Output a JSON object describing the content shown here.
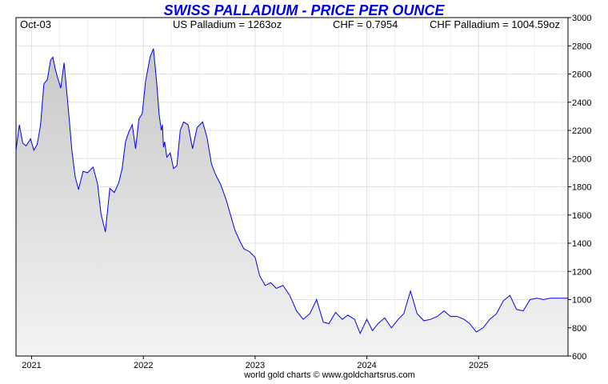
{
  "chart_data": {
    "type": "area",
    "title": "SWISS PALLADIUM - PRICE PER OUNCE",
    "header": {
      "date": "Oct-03",
      "us_price": "US Palladium = 1263oz",
      "fx": "CHF = 0.7954",
      "chf_price": "CHF Palladium = 1004.59oz"
    },
    "footer": "world gold charts © www.goldchartsrus.com",
    "ylim": [
      600,
      3000
    ],
    "y_ticks": [
      "600",
      "800",
      "1000",
      "1200",
      "1400",
      "1600",
      "1800",
      "2000",
      "2200",
      "2400",
      "2600",
      "2800",
      "3000"
    ],
    "x_range": [
      2020.86,
      2025.8
    ],
    "x_ticks": [
      "2021",
      "2022",
      "2023",
      "2024",
      "2025"
    ],
    "grid": true,
    "colors": {
      "line": "#0000ee",
      "title": "#0000ee",
      "fill_top": "#c8c8c8",
      "fill_bottom": "#f3f3f3"
    },
    "series": [
      {
        "x": [
          2020.86,
          2020.89,
          2020.92,
          2020.95,
          2020.99,
          2021.02,
          2021.05,
          2021.08,
          2021.11,
          2021.14,
          2021.17,
          2021.19,
          2021.21,
          2021.23,
          2021.26,
          2021.29,
          2021.32,
          2021.34,
          2021.36,
          2021.39,
          2021.42,
          2021.46,
          2021.5,
          2021.55,
          2021.59,
          2021.62,
          2021.66,
          2021.7,
          2021.74,
          2021.78,
          2021.81,
          2021.84,
          2021.87,
          2021.9,
          2021.93,
          2021.96,
          2021.99,
          2022.02,
          2022.06,
          2022.09,
          2022.12,
          2022.14,
          2022.16,
          2022.17,
          2022.18,
          2022.19,
          2022.21,
          2022.24,
          2022.27,
          2022.3,
          2022.33,
          2022.36,
          2022.4,
          2022.44,
          2022.48,
          2022.53,
          2022.57,
          2022.61,
          2022.65,
          2022.69,
          2022.74,
          2022.78,
          2022.82,
          2022.86,
          2022.9,
          2022.95,
          2023.0,
          2023.04,
          2023.09,
          2023.14,
          2023.19,
          2023.25,
          2023.31,
          2023.37,
          2023.43,
          2023.49,
          2023.55,
          2023.61,
          2023.66,
          2023.72,
          2023.78,
          2023.83,
          2023.89,
          2023.94,
          2024.0,
          2024.05,
          2024.1,
          2024.16,
          2024.22,
          2024.28,
          2024.33,
          2024.39,
          2024.45,
          2024.51,
          2024.57,
          2024.63,
          2024.69,
          2024.75,
          2024.81,
          2024.87,
          2024.92,
          2024.98,
          2025.04,
          2025.1,
          2025.16,
          2025.22,
          2025.28,
          2025.34,
          2025.4,
          2025.46,
          2025.52,
          2025.58,
          2025.64,
          2025.7,
          2025.75,
          2025.8
        ],
        "values": [
          2060,
          2240,
          2110,
          2090,
          2140,
          2060,
          2100,
          2240,
          2530,
          2560,
          2700,
          2720,
          2640,
          2580,
          2500,
          2680,
          2420,
          2250,
          2060,
          1870,
          1780,
          1910,
          1900,
          1940,
          1820,
          1610,
          1480,
          1790,
          1760,
          1830,
          1930,
          2120,
          2190,
          2240,
          2070,
          2280,
          2320,
          2550,
          2720,
          2780,
          2530,
          2320,
          2200,
          2240,
          2080,
          2120,
          2010,
          2040,
          1930,
          1950,
          2200,
          2260,
          2240,
          2070,
          2220,
          2260,
          2150,
          1960,
          1880,
          1820,
          1710,
          1600,
          1490,
          1420,
          1360,
          1340,
          1300,
          1170,
          1100,
          1120,
          1080,
          1100,
          1030,
          920,
          860,
          900,
          1000,
          840,
          830,
          910,
          860,
          890,
          860,
          760,
          860,
          780,
          830,
          870,
          800,
          860,
          900,
          1060,
          900,
          850,
          860,
          880,
          920,
          880,
          880,
          860,
          830,
          770,
          800,
          860,
          900,
          990,
          1030,
          930,
          920,
          1000,
          1010,
          1000,
          1010,
          1010,
          1010,
          1010
        ],
        "fill": true
      }
    ]
  }
}
